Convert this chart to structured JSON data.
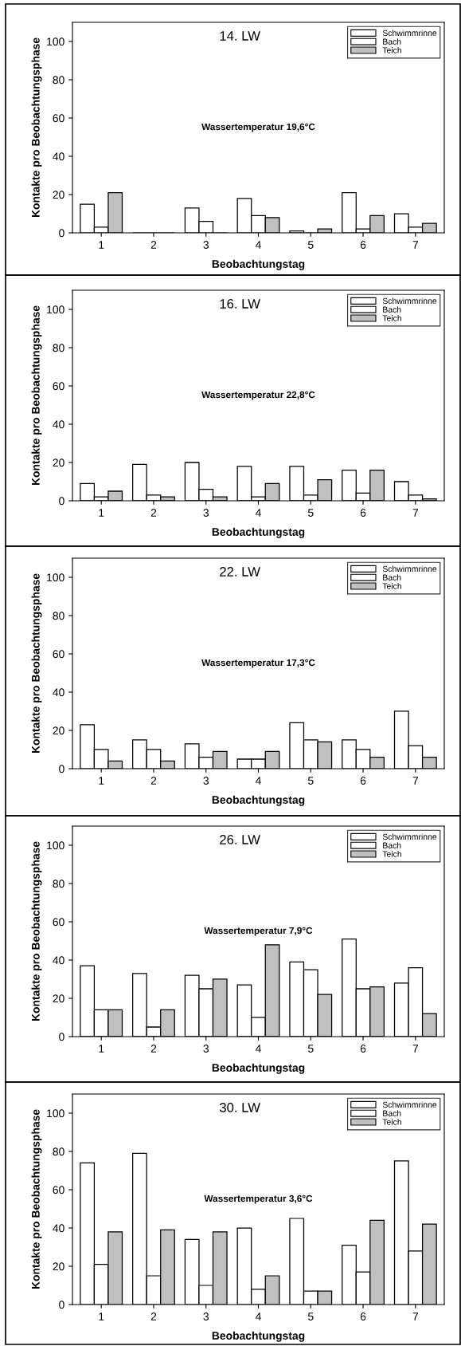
{
  "chart_data": [
    {
      "type": "bar",
      "title": "14. LW",
      "xlabel": "Beobachtungstag",
      "ylabel": "Kontakte pro Beobachtungsphase",
      "annotations": [
        "Wassertemperatur 19,6°C"
      ],
      "categories": [
        "1",
        "2",
        "3",
        "4",
        "5",
        "6",
        "7"
      ],
      "ylim": [
        0,
        110
      ],
      "yticks": [
        0,
        20,
        40,
        60,
        80,
        100
      ],
      "grid": false,
      "legend": "top right",
      "series": [
        {
          "name": "Schwimmrinne",
          "color": "#ffffff",
          "values": [
            15,
            0,
            13,
            18,
            1,
            21,
            10
          ]
        },
        {
          "name": "Bach",
          "color": "#ffffff",
          "values": [
            3,
            0,
            6,
            9,
            0,
            2,
            3
          ]
        },
        {
          "name": "Teich",
          "color": "#c0c0c0",
          "values": [
            21,
            0,
            0,
            8,
            2,
            9,
            5
          ]
        }
      ]
    },
    {
      "type": "bar",
      "title": "16. LW",
      "xlabel": "Beobachtungstag",
      "ylabel": "Kontakte pro Beobachtungsphase",
      "annotations": [
        "Wassertemperatur 22,8°C"
      ],
      "categories": [
        "1",
        "2",
        "3",
        "4",
        "5",
        "6",
        "7"
      ],
      "ylim": [
        0,
        110
      ],
      "yticks": [
        0,
        20,
        40,
        60,
        80,
        100
      ],
      "grid": false,
      "legend": "top right",
      "series": [
        {
          "name": "Schwimmrinne",
          "color": "#ffffff",
          "values": [
            9,
            19,
            20,
            18,
            18,
            16,
            10
          ]
        },
        {
          "name": "Bach",
          "color": "#ffffff",
          "values": [
            2,
            3,
            6,
            2,
            3,
            4,
            3
          ]
        },
        {
          "name": "Teich",
          "color": "#c0c0c0",
          "values": [
            5,
            2,
            2,
            9,
            11,
            16,
            1
          ]
        }
      ]
    },
    {
      "type": "bar",
      "title": "22. LW",
      "xlabel": "Beobachtungstag",
      "ylabel": "Kontakte pro Beobachtungsphase",
      "annotations": [
        "Wassertemperatur 17,3°C"
      ],
      "categories": [
        "1",
        "2",
        "3",
        "4",
        "5",
        "6",
        "7"
      ],
      "ylim": [
        0,
        110
      ],
      "yticks": [
        0,
        20,
        40,
        60,
        80,
        100
      ],
      "grid": false,
      "legend": "top right",
      "series": [
        {
          "name": "Schwimmrinne",
          "color": "#ffffff",
          "values": [
            23,
            15,
            13,
            5,
            24,
            15,
            30
          ]
        },
        {
          "name": "Bach",
          "color": "#ffffff",
          "values": [
            10,
            10,
            6,
            5,
            15,
            10,
            12
          ]
        },
        {
          "name": "Teich",
          "color": "#c0c0c0",
          "values": [
            4,
            4,
            9,
            9,
            14,
            6,
            6
          ]
        }
      ]
    },
    {
      "type": "bar",
      "title": "26. LW",
      "xlabel": "Beobachtungstag",
      "ylabel": "Kontakte pro Beobachtungsphase",
      "annotations": [
        "Wassertemperatur 7,9°C"
      ],
      "categories": [
        "1",
        "2",
        "3",
        "4",
        "5",
        "6",
        "7"
      ],
      "ylim": [
        0,
        110
      ],
      "yticks": [
        0,
        20,
        40,
        60,
        80,
        100
      ],
      "grid": false,
      "legend": "top right",
      "series": [
        {
          "name": "Schwimmrinne",
          "color": "#ffffff",
          "values": [
            37,
            33,
            32,
            27,
            39,
            51,
            28
          ]
        },
        {
          "name": "Bach",
          "color": "#ffffff",
          "values": [
            14,
            5,
            25,
            10,
            35,
            25,
            36
          ]
        },
        {
          "name": "Teich",
          "color": "#c0c0c0",
          "values": [
            14,
            14,
            30,
            48,
            22,
            26,
            12
          ]
        }
      ]
    },
    {
      "type": "bar",
      "title": "30. LW",
      "xlabel": "Beobachtungstag",
      "ylabel": "Kontakte pro Beobachtungsphase",
      "annotations": [
        "Wassertemperatur 3,6°C"
      ],
      "categories": [
        "1",
        "2",
        "3",
        "4",
        "5",
        "6",
        "7"
      ],
      "ylim": [
        0,
        110
      ],
      "yticks": [
        0,
        20,
        40,
        60,
        80,
        100
      ],
      "grid": false,
      "legend": "top right",
      "series": [
        {
          "name": "Schwimmrinne",
          "color": "#ffffff",
          "values": [
            74,
            79,
            34,
            40,
            45,
            31,
            75
          ]
        },
        {
          "name": "Bach",
          "color": "#ffffff",
          "values": [
            21,
            15,
            10,
            8,
            7,
            17,
            28
          ]
        },
        {
          "name": "Teich",
          "color": "#c0c0c0",
          "values": [
            38,
            39,
            38,
            15,
            7,
            44,
            42
          ]
        }
      ]
    }
  ]
}
